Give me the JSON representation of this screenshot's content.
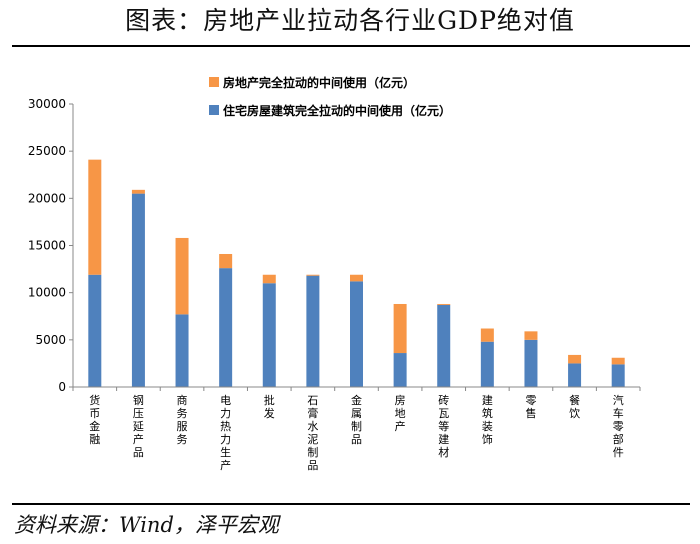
{
  "title": "图表：房地产业拉动各行业GDP绝对值",
  "source": "资料来源：Wind，泽平宏观",
  "chart_data": {
    "type": "bar",
    "stacked": true,
    "categories": [
      "货币金融",
      "钢压延产品",
      "商务服务",
      "电力热力生产",
      "批发",
      "石膏水泥制品",
      "金属制品",
      "房地产",
      "砖瓦等建材",
      "建筑装饰",
      "零售",
      "餐饮",
      "汽车零部件"
    ],
    "series": [
      {
        "name": "住宅房屋建筑完全拉动的中间使用（亿元）",
        "color": "#4f81bd",
        "values": [
          11900,
          20500,
          7700,
          12600,
          11000,
          11800,
          11200,
          3600,
          8700,
          4800,
          5000,
          2500,
          2400
        ]
      },
      {
        "name": "房地产完全拉动的中间使用（亿元）",
        "color": "#f79646",
        "values": [
          12200,
          400,
          8100,
          1500,
          900,
          100,
          700,
          5200,
          100,
          1400,
          900,
          900,
          700
        ]
      }
    ],
    "ylim": [
      0,
      30000
    ],
    "yticks": [
      0,
      5000,
      10000,
      15000,
      20000,
      25000,
      30000
    ],
    "xlabel": "",
    "ylabel": "",
    "legend_position": "top-center",
    "grid": false
  }
}
